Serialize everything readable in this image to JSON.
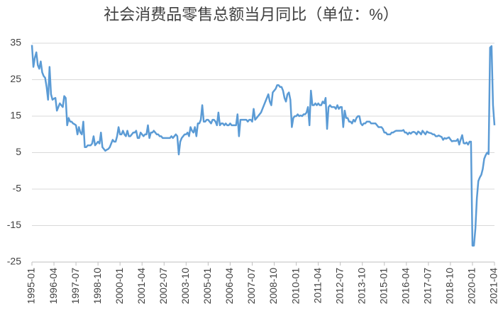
{
  "chart_data": {
    "type": "line",
    "title": "社会消费品零售总额当月同比（单位：%）",
    "categories": [
      "1995-01",
      null,
      null,
      null,
      null,
      null,
      null,
      null,
      null,
      null,
      null,
      null,
      null,
      null,
      null,
      "1996-04",
      null,
      null,
      null,
      null,
      null,
      null,
      null,
      null,
      null,
      null,
      null,
      null,
      null,
      null,
      "1997-07",
      null,
      null,
      null,
      null,
      null,
      null,
      null,
      null,
      null,
      null,
      null,
      null,
      null,
      null,
      "1998-10",
      null,
      null,
      null,
      null,
      null,
      null,
      null,
      null,
      null,
      null,
      null,
      null,
      null,
      null,
      "2000-01",
      null,
      null,
      null,
      null,
      null,
      null,
      null,
      null,
      null,
      null,
      null,
      null,
      null,
      null,
      "2001-04",
      null,
      null,
      null,
      null,
      null,
      null,
      null,
      null,
      null,
      null,
      null,
      null,
      null,
      null,
      "2002-07",
      null,
      null,
      null,
      null,
      null,
      null,
      null,
      null,
      null,
      null,
      null,
      null,
      null,
      null,
      "2003-10",
      null,
      null,
      null,
      null,
      null,
      null,
      null,
      null,
      null,
      null,
      null,
      null,
      null,
      null,
      "2005-01",
      null,
      null,
      null,
      null,
      null,
      null,
      null,
      null,
      null,
      null,
      null,
      null,
      null,
      null,
      "2006-04",
      null,
      null,
      null,
      null,
      null,
      null,
      null,
      null,
      null,
      null,
      null,
      null,
      null,
      null,
      "2007-07",
      null,
      null,
      null,
      null,
      null,
      null,
      null,
      null,
      null,
      null,
      null,
      null,
      null,
      null,
      "2008-10",
      null,
      null,
      null,
      null,
      null,
      null,
      null,
      null,
      null,
      null,
      null,
      null,
      null,
      null,
      "2010-01",
      null,
      null,
      null,
      null,
      null,
      null,
      null,
      null,
      null,
      null,
      null,
      null,
      null,
      null,
      "2011-04",
      null,
      null,
      null,
      null,
      null,
      null,
      null,
      null,
      null,
      null,
      null,
      null,
      null,
      null,
      "2012-07",
      null,
      null,
      null,
      null,
      null,
      null,
      null,
      null,
      null,
      null,
      null,
      null,
      null,
      null,
      "2013-10",
      null,
      null,
      null,
      null,
      null,
      null,
      null,
      null,
      null,
      null,
      null,
      null,
      null,
      null,
      "2015-01",
      null,
      null,
      null,
      null,
      null,
      null,
      null,
      null,
      null,
      null,
      null,
      null,
      null,
      null,
      "2016-04",
      null,
      null,
      null,
      null,
      null,
      null,
      null,
      null,
      null,
      null,
      null,
      null,
      null,
      null,
      "2017-07",
      null,
      null,
      null,
      null,
      null,
      null,
      null,
      null,
      null,
      null,
      null,
      null,
      null,
      null,
      "2018-10",
      null,
      null,
      null,
      null,
      null,
      null,
      null,
      null,
      null,
      null,
      null,
      null,
      null,
      null,
      "2020-01",
      null,
      null,
      null,
      null,
      null,
      null,
      null,
      null,
      null,
      null,
      null,
      null,
      null,
      null,
      "2021-04"
    ],
    "series": [
      {
        "color": "#5b9bd5",
        "values": [
          34.5,
          28.5,
          31,
          32.5,
          29,
          28,
          30,
          27,
          26,
          25.5,
          23,
          19.5,
          28.5,
          21,
          19.5,
          19.8,
          20,
          16.5,
          17.5,
          18.5,
          18,
          17.5,
          20.5,
          20,
          12.5,
          14.5,
          13.5,
          13.5,
          13,
          12.8,
          12.5,
          10,
          12,
          10.5,
          10,
          13.5,
          6.5,
          6.5,
          7,
          7,
          7,
          7.5,
          9.5,
          7,
          7.5,
          8,
          7.5,
          10.5,
          6.5,
          6,
          5.5,
          5.8,
          6,
          6.5,
          7.5,
          8.5,
          8,
          8,
          9.5,
          12,
          10,
          10,
          11,
          10,
          9.5,
          11,
          9.5,
          9.5,
          10,
          10.5,
          10.5,
          11,
          9,
          9,
          10.5,
          10,
          9.5,
          10,
          10,
          12.5,
          9,
          10.5,
          10.5,
          11,
          10.5,
          10,
          10,
          9.5,
          9.5,
          9,
          9,
          9,
          9,
          9,
          9,
          9.5,
          9,
          9.5,
          10,
          9.5,
          4.5,
          8,
          9,
          9.5,
          10,
          10,
          10.5,
          9.5,
          12,
          11,
          10.5,
          12,
          9.5,
          13,
          13,
          14,
          18,
          13.5,
          13.5,
          14,
          14,
          13.5,
          13,
          14,
          14,
          13.5,
          12.5,
          16,
          12.5,
          13,
          13,
          12.5,
          13,
          12.5,
          12.5,
          13,
          12.5,
          12.5,
          12.5,
          12.5,
          15.5,
          9.5,
          14,
          14,
          14,
          14,
          14,
          13.5,
          14,
          14,
          13.5,
          17,
          14,
          14.5,
          15,
          15.5,
          16,
          17,
          18,
          19,
          20,
          21,
          19,
          18,
          21.5,
          22,
          22.5,
          23.5,
          23.5,
          23,
          23,
          22,
          20,
          19,
          21,
          21.5,
          19.5,
          12,
          14.5,
          15,
          15,
          15.5,
          15,
          15.2,
          15,
          15.5,
          15.5,
          16,
          17.5,
          12.5,
          22,
          18,
          18,
          18.5,
          18,
          18.5,
          18,
          18,
          19,
          18.5,
          20,
          11.5,
          17.5,
          18,
          17.5,
          17.5,
          17.5,
          17,
          18,
          17,
          17.5,
          17.5,
          12,
          16.5,
          14.5,
          14.5,
          13.5,
          13.5,
          13,
          14,
          13.5,
          14.5,
          15,
          15,
          13,
          12.5,
          13,
          13,
          13.5,
          13.5,
          13.5,
          13,
          13,
          13,
          13,
          12.5,
          12,
          12,
          12,
          11.5,
          10.5,
          10.5,
          10,
          10,
          10,
          10.5,
          10.5,
          10.8,
          11,
          11,
          11,
          11,
          11,
          11.2,
          10.5,
          10.5,
          10,
          10.5,
          10.2,
          10.6,
          10.7,
          10.5,
          10,
          10.8,
          10.5,
          10,
          11,
          10.5,
          10,
          10.8,
          10.5,
          10.4,
          10.3,
          10,
          10,
          9.5,
          9.5,
          9.7,
          9.5,
          9.3,
          8.5,
          9,
          8.8,
          9,
          9.2,
          8.6,
          8.1,
          8.2,
          8.2,
          8.2,
          8.7,
          7.2,
          8.6,
          9.8,
          7.6,
          7.5,
          7.8,
          7.2,
          8,
          8,
          -20.5,
          -20.5,
          -15.8,
          -7.5,
          -2.8,
          -1.8,
          -1.1,
          0.5,
          3.3,
          4.3,
          5,
          4.6,
          33.8,
          34.2,
          18,
          12.5
        ]
      }
    ],
    "ylim": [
      -25,
      35
    ],
    "yticks": [
      35,
      25,
      15,
      5,
      -5,
      -15,
      -25
    ],
    "grid": true
  }
}
